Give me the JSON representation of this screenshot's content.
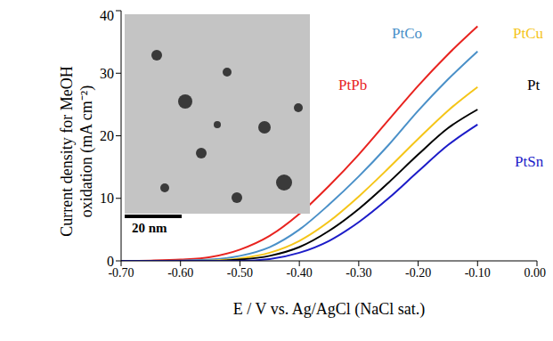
{
  "chart_data": {
    "type": "line",
    "x_label": "E / V vs. Ag/AgCl (NaCl sat.)",
    "y_label": [
      "Current density for MeOH",
      "oxidation (mA cm⁻²)"
    ],
    "annotations": [
      "20 nm"
    ],
    "x": [
      -0.7,
      -0.65,
      -0.6,
      -0.55,
      -0.5,
      -0.45,
      -0.4,
      -0.35,
      -0.3,
      -0.25,
      -0.2,
      -0.15,
      -0.1
    ],
    "series": [
      {
        "name": "PtPb",
        "color": "#e8231f",
        "values": [
          0,
          0.05,
          0.2,
          0.6,
          1.8,
          4,
          7.5,
          12,
          17,
          22.5,
          28,
          33,
          37.5
        ]
      },
      {
        "name": "PtCo",
        "color": "#4a90c8",
        "values": [
          0,
          0,
          0.05,
          0.2,
          0.8,
          2.2,
          5,
          9,
          13.5,
          18.5,
          24,
          29,
          33.5
        ]
      },
      {
        "name": "PtCu",
        "color": "#f5c518",
        "values": [
          0,
          0,
          0,
          0.05,
          0.4,
          1.3,
          3.2,
          6.3,
          10.3,
          14.8,
          19.5,
          24,
          27.8
        ]
      },
      {
        "name": "Pt",
        "color": "#000000",
        "values": [
          0,
          0,
          0,
          0,
          0.2,
          0.8,
          2.2,
          4.8,
          8.3,
          12.5,
          17,
          21.2,
          24.2
        ]
      },
      {
        "name": "PtSn",
        "color": "#1c1cc8",
        "values": [
          0,
          0,
          0,
          0,
          0,
          0.3,
          1.3,
          3.2,
          6.2,
          10,
          14.3,
          18.5,
          21.8
        ]
      }
    ],
    "xlim": [
      -0.7,
      0.0
    ],
    "ylim": [
      0,
      40
    ],
    "xticks": [
      {
        "value": -0.7,
        "label": "-0.70"
      },
      {
        "value": -0.6,
        "label": "-0.60"
      },
      {
        "value": -0.5,
        "label": "-0.50"
      },
      {
        "value": -0.4,
        "label": "-0.40"
      },
      {
        "value": -0.3,
        "label": "-0.30"
      },
      {
        "value": -0.2,
        "label": "-0.20"
      },
      {
        "value": -0.1,
        "label": "-0.10"
      },
      {
        "value": 0,
        "label": "0.00"
      }
    ],
    "yticks": [
      0,
      10,
      20,
      30,
      40
    ],
    "grid": false
  }
}
